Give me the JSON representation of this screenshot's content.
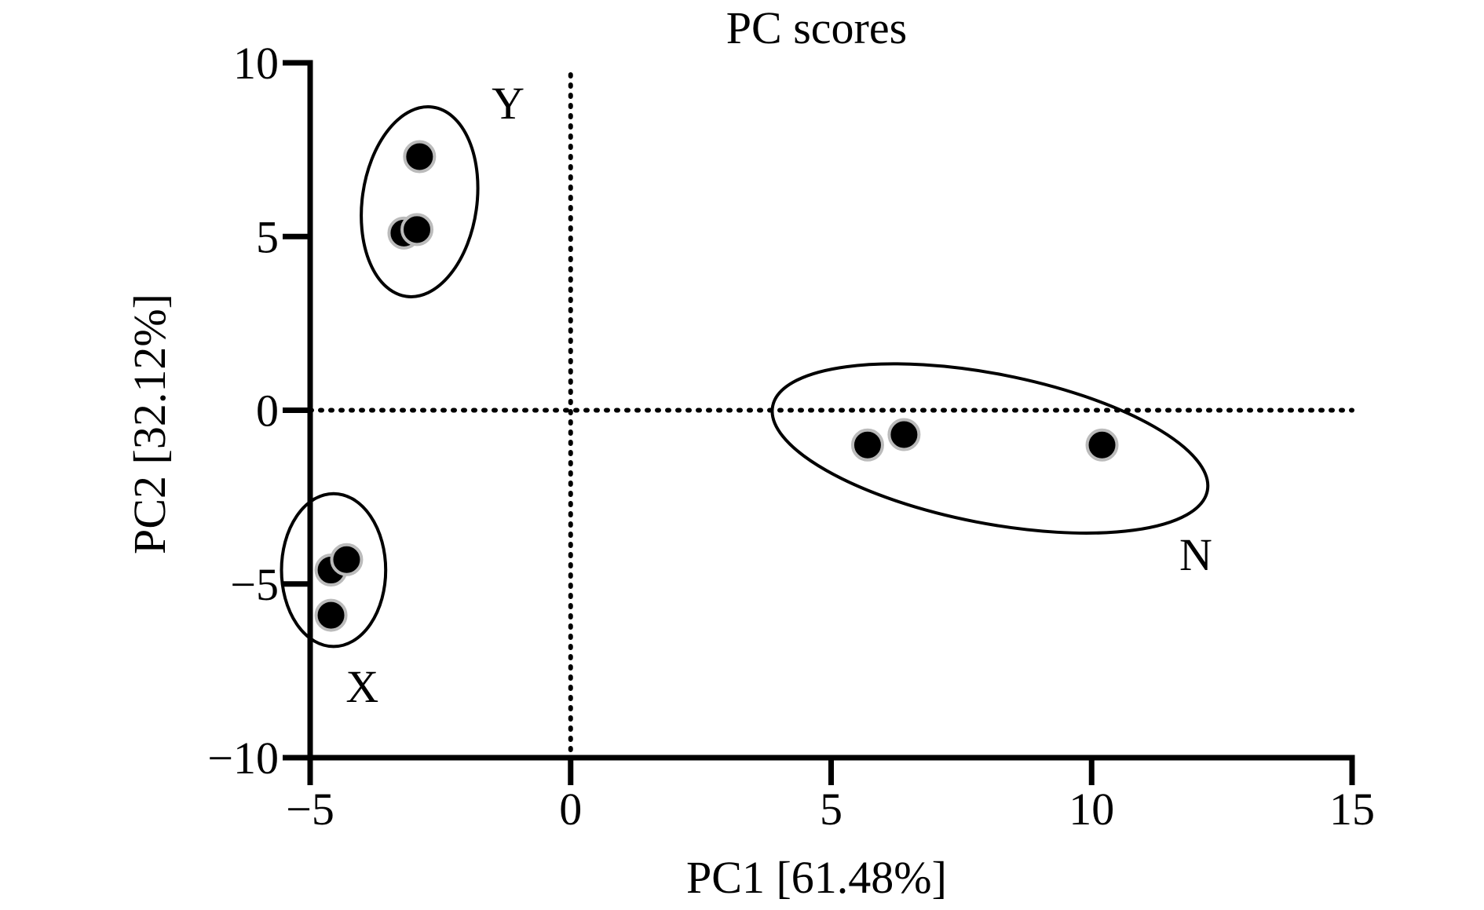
{
  "chart_data": {
    "type": "scatter",
    "title": "PC scores",
    "xlabel": "PC1 [61.48%]",
    "ylabel": "PC2 [32.12%]",
    "xlim": [
      -5,
      15
    ],
    "ylim": [
      -10,
      10
    ],
    "xticks": [
      -5,
      0,
      5,
      10,
      15
    ],
    "yticks": [
      -10,
      -5,
      0,
      5,
      10
    ],
    "xtick_labels": [
      "−5",
      "0",
      "5",
      "10",
      "15"
    ],
    "ytick_labels": [
      "−10",
      "−5",
      "0",
      "5",
      "10"
    ],
    "reference_lines": {
      "x": 0,
      "y": 0,
      "style": "dotted"
    },
    "grid": false,
    "marker_color": "#000000",
    "marker_edge_color": "#bbbbbb",
    "series": [
      {
        "points": [
          {
            "x": -2.9,
            "y": 7.3
          },
          {
            "x": -3.2,
            "y": 5.1
          },
          {
            "x": -2.95,
            "y": 5.2
          }
        ]
      },
      {
        "points": [
          {
            "x": -4.6,
            "y": -4.6
          },
          {
            "x": -4.3,
            "y": -4.3
          },
          {
            "x": -4.6,
            "y": -5.9
          }
        ]
      },
      {
        "points": [
          {
            "x": 5.7,
            "y": -1.0
          },
          {
            "x": 6.4,
            "y": -0.7
          },
          {
            "x": 10.2,
            "y": -1.0
          }
        ]
      }
    ],
    "groups": [
      {
        "label": "Y",
        "label_pos": {
          "x": -1.2,
          "y": 8.4
        },
        "ellipse": {
          "cx": -2.9,
          "cy": 6.0,
          "rx": 1.1,
          "ry": 2.75,
          "rotate": 8
        }
      },
      {
        "label": "X",
        "label_pos": {
          "x": -4.0,
          "y": -8.4
        },
        "ellipse": {
          "cx": -4.55,
          "cy": -4.6,
          "rx": 1.0,
          "ry": 2.2,
          "rotate": 0
        }
      },
      {
        "label": "N",
        "label_pos": {
          "x": 12.0,
          "y": -4.6
        },
        "ellipse": {
          "cx": 8.05,
          "cy": -1.1,
          "rx": 4.25,
          "ry": 2.15,
          "rotate": 11
        }
      }
    ]
  }
}
